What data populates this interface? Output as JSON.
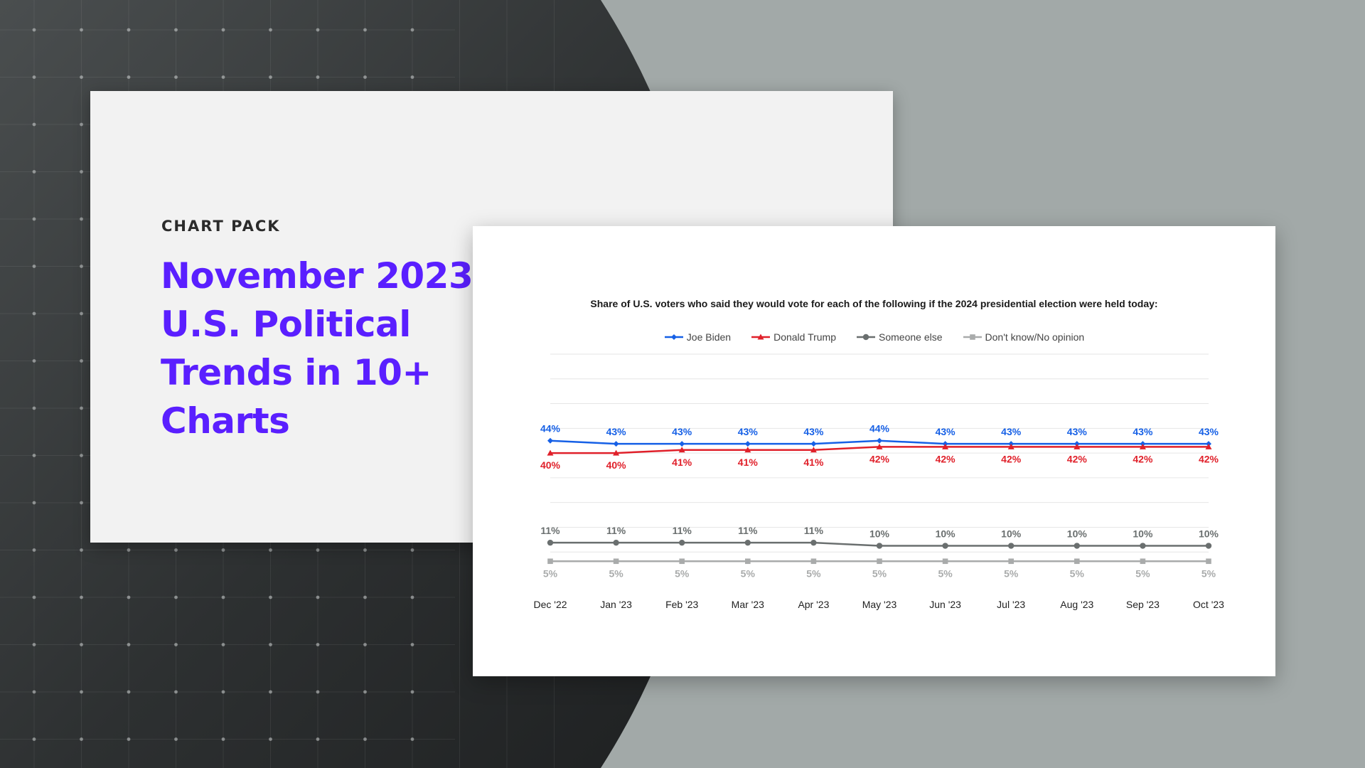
{
  "hero": {
    "eyebrow": "CHART PACK",
    "headline": "November 2023 U.S. Political Trends in 10+ Charts"
  },
  "colors": {
    "accent": "#5a1fff",
    "biden": "#1660e6",
    "trump": "#e0202a",
    "someone_else": "#6a6f6f",
    "dont_know": "#a9abab"
  },
  "chart_data": {
    "type": "line",
    "title": "Share of U.S. voters who said they would vote for each of the following if the 2024 presidential election were held today:",
    "xlabel": "",
    "ylabel": "",
    "ylim": [
      0,
      72
    ],
    "grid": true,
    "legend_position": "top-center",
    "categories": [
      "Dec '22",
      "Jan '23",
      "Feb '23",
      "Mar '23",
      "Apr '23",
      "May '23",
      "Jun '23",
      "Jul '23",
      "Aug '23",
      "Sep '23",
      "Oct '23"
    ],
    "series": [
      {
        "name": "Joe Biden",
        "marker": "diamond",
        "color": "#1660e6",
        "label_position": "above",
        "values": [
          44,
          43,
          43,
          43,
          43,
          44,
          43,
          43,
          43,
          43,
          43
        ]
      },
      {
        "name": "Donald Trump",
        "marker": "triangle",
        "color": "#e0202a",
        "label_position": "below",
        "values": [
          40,
          40,
          41,
          41,
          41,
          42,
          42,
          42,
          42,
          42,
          42
        ]
      },
      {
        "name": "Someone else",
        "marker": "circle",
        "color": "#6a6f6f",
        "label_position": "above",
        "values": [
          11,
          11,
          11,
          11,
          11,
          10,
          10,
          10,
          10,
          10,
          10
        ]
      },
      {
        "name": "Don't know/No opinion",
        "marker": "square",
        "color": "#a9abab",
        "label_position": "below",
        "values": [
          5,
          5,
          5,
          5,
          5,
          5,
          5,
          5,
          5,
          5,
          5
        ]
      }
    ]
  }
}
